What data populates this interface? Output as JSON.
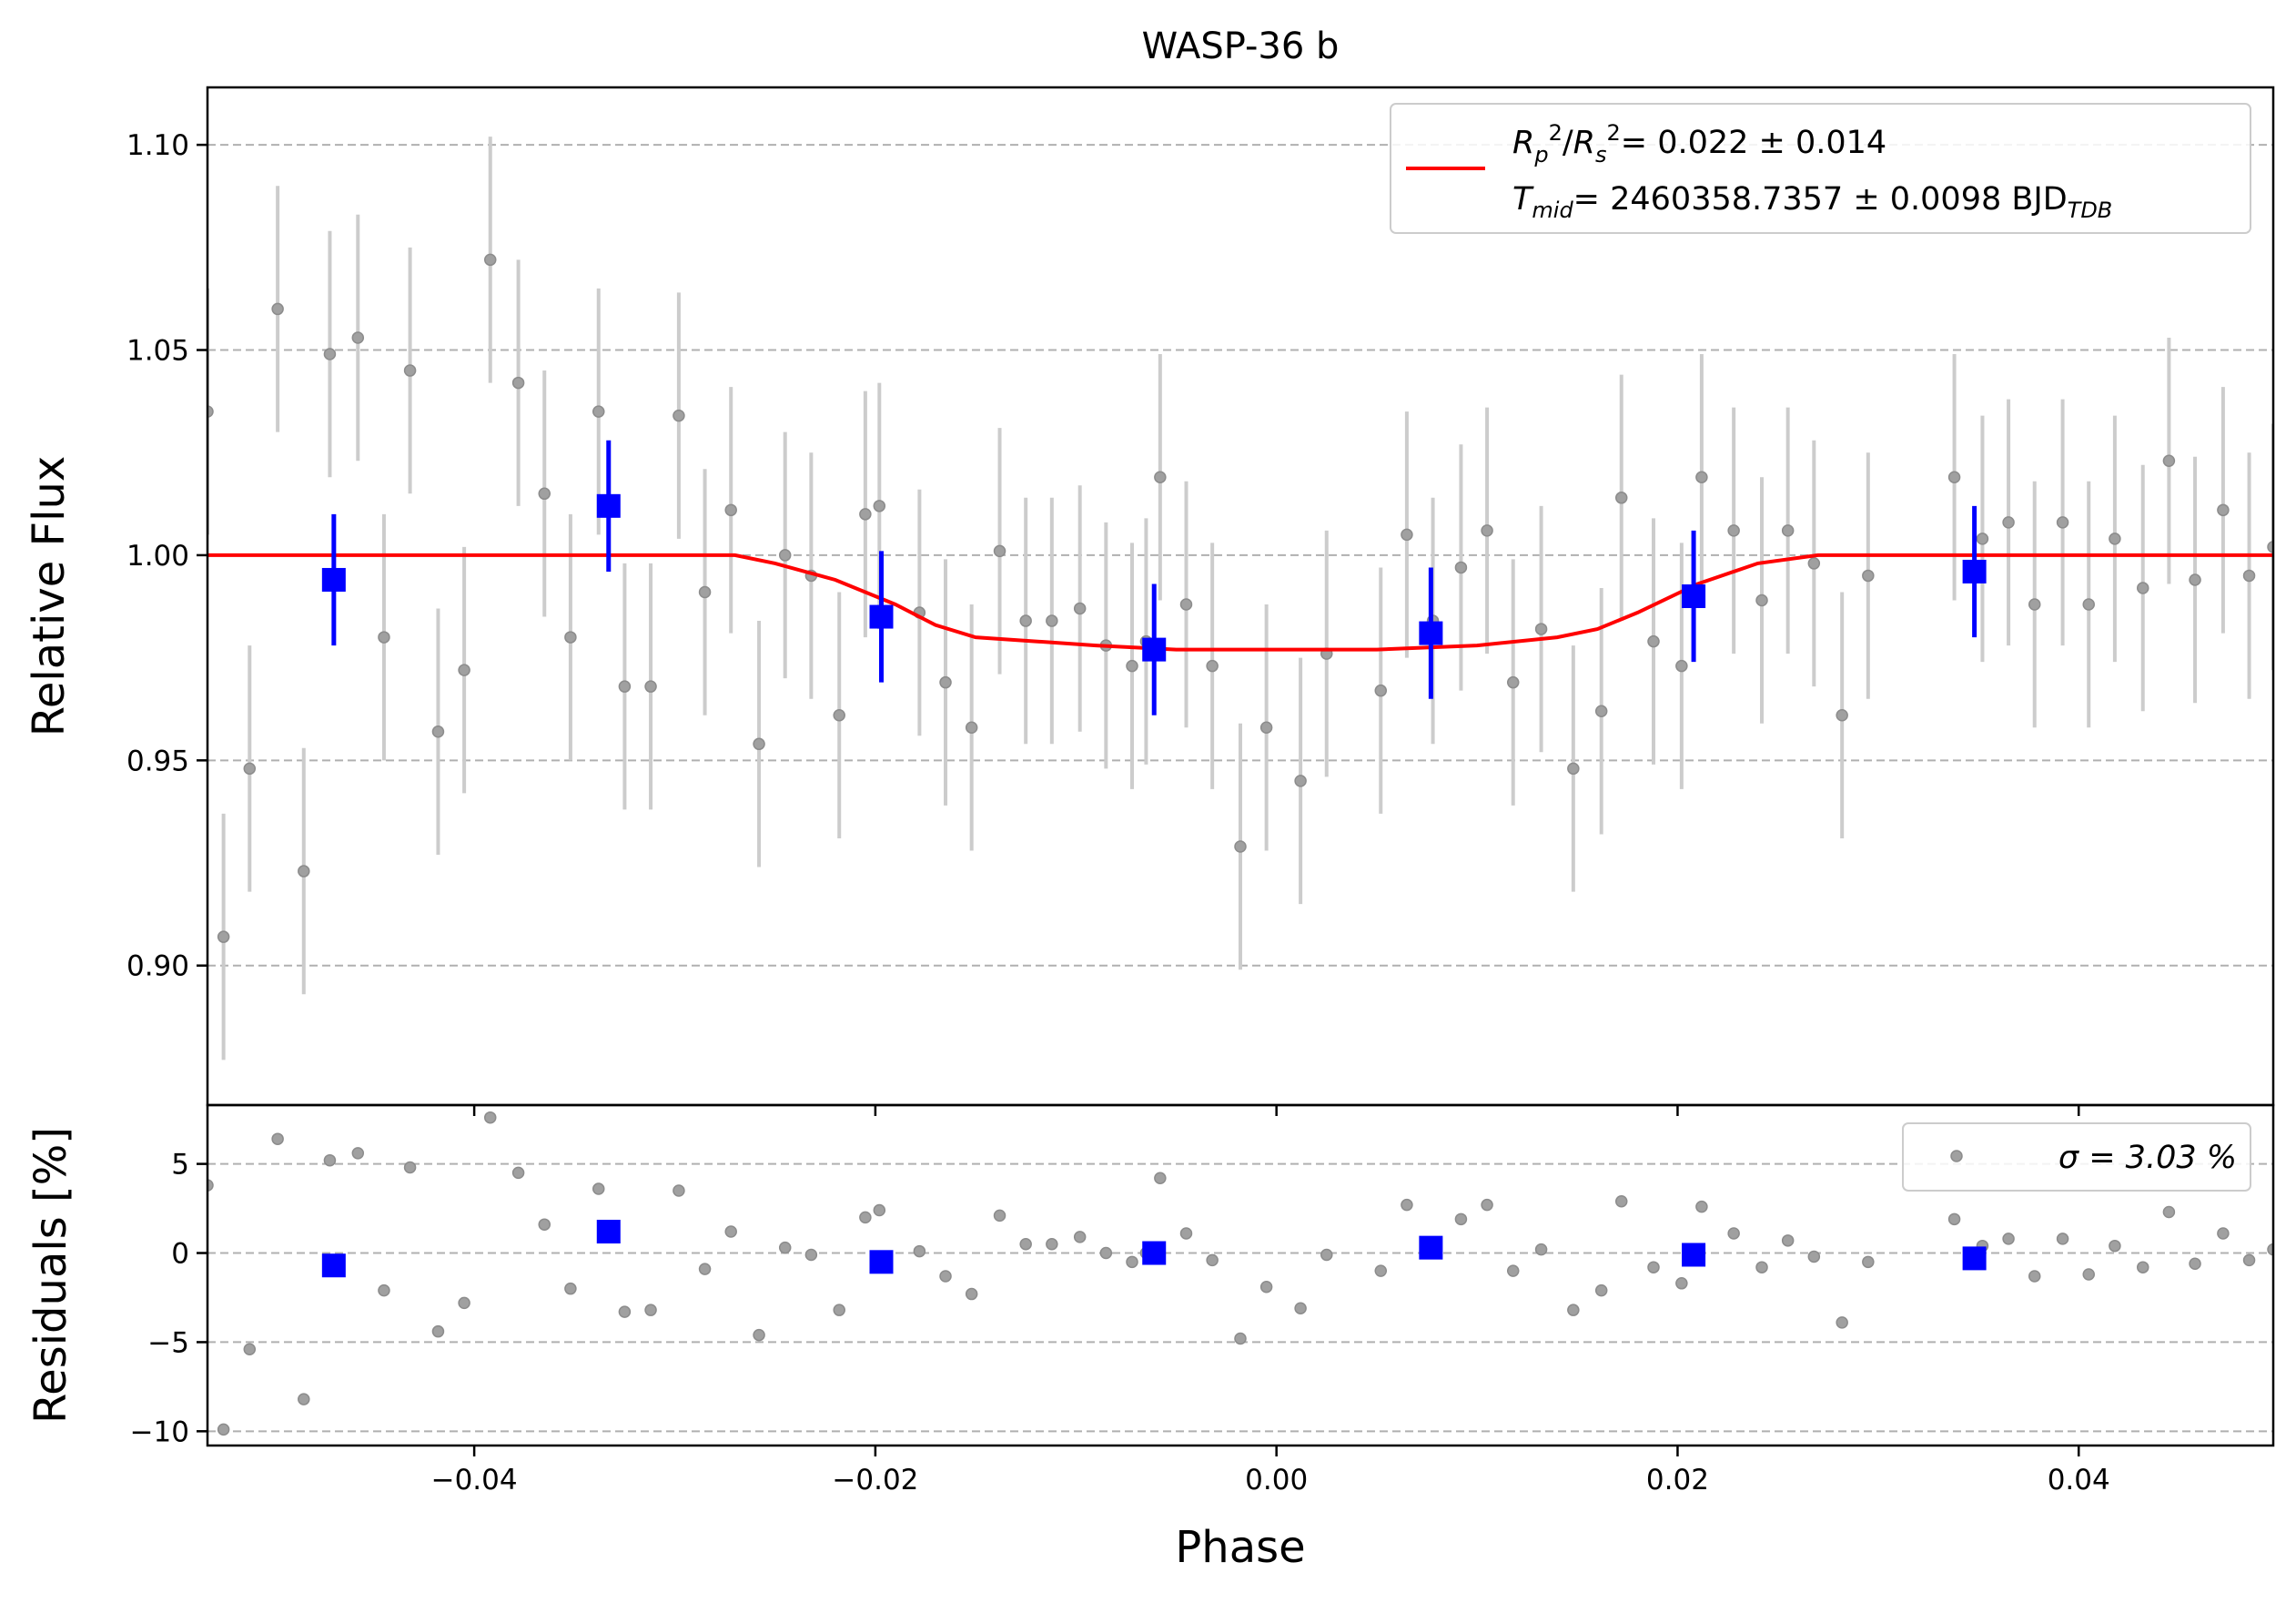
{
  "chart_data": [
    {
      "type": "scatter",
      "panel": "light-curve",
      "title": "WASP-36 b",
      "xlabel": "",
      "ylabel": "Relative Flux",
      "xlim": [
        -0.0533,
        0.0497
      ],
      "ylim": [
        0.866,
        1.114
      ],
      "yticks": [
        0.9,
        0.95,
        1.0,
        1.05,
        1.1
      ],
      "ytick_labels": [
        "0.90",
        "0.95",
        "1.00",
        "1.05",
        "1.10"
      ],
      "xticks": [
        -0.04,
        -0.02,
        0.0,
        0.02,
        0.04
      ],
      "grid": "horizontal dashed",
      "legend_position": "top-right",
      "legend": {
        "line1": {
          "label": "R_p^2/R_s^2",
          "value": "= 0.022 ± 0.014"
        },
        "line2": {
          "label": "T_mid",
          "value": "= 2460358.7357 ± 0.0098 BJD",
          "unit_sub": "TDB"
        }
      },
      "colors": {
        "raw": "#8c8c8c",
        "errorbar": "#cccccc",
        "binned": "#0000ff",
        "model": "#ff0000",
        "grid": "#b0b0b0"
      },
      "series": [
        {
          "kind": "raw",
          "yerr": 0.03,
          "points": [
            [
              -0.0533,
              1.035
            ],
            [
              -0.0525,
              0.907
            ],
            [
              -0.0512,
              0.948
            ],
            [
              -0.0498,
              1.06
            ],
            [
              -0.0485,
              0.923
            ],
            [
              -0.0472,
              1.049
            ],
            [
              -0.0458,
              1.053
            ],
            [
              -0.0445,
              0.98
            ],
            [
              -0.0432,
              1.045
            ],
            [
              -0.0418,
              0.957
            ],
            [
              -0.0405,
              0.972
            ],
            [
              -0.0392,
              1.072
            ],
            [
              -0.0378,
              1.042
            ],
            [
              -0.0365,
              1.015
            ],
            [
              -0.0352,
              0.98
            ],
            [
              -0.0338,
              1.035
            ],
            [
              -0.0325,
              0.968
            ],
            [
              -0.0312,
              0.968
            ],
            [
              -0.0298,
              1.034
            ],
            [
              -0.0285,
              0.991
            ],
            [
              -0.0272,
              1.011
            ],
            [
              -0.0258,
              0.954
            ],
            [
              -0.0245,
              1.0
            ],
            [
              -0.0232,
              0.995
            ],
            [
              -0.0218,
              0.961
            ],
            [
              -0.0205,
              1.01
            ],
            [
              -0.0198,
              1.012
            ],
            [
              -0.0178,
              0.986
            ],
            [
              -0.0165,
              0.969
            ],
            [
              -0.0152,
              0.958
            ],
            [
              -0.0138,
              1.001
            ],
            [
              -0.0125,
              0.984
            ],
            [
              -0.0112,
              0.984
            ],
            [
              -0.0098,
              0.987
            ],
            [
              -0.0085,
              0.978
            ],
            [
              -0.0072,
              0.973
            ],
            [
              -0.0065,
              0.979
            ],
            [
              -0.0058,
              1.019
            ],
            [
              -0.0045,
              0.988
            ],
            [
              -0.0032,
              0.973
            ],
            [
              -0.0018,
              0.929
            ],
            [
              -0.0005,
              0.958
            ],
            [
              0.0012,
              0.945
            ],
            [
              0.0025,
              0.976
            ],
            [
              0.0052,
              0.967
            ],
            [
              0.0065,
              1.005
            ],
            [
              0.0078,
              0.984
            ],
            [
              0.0092,
              0.997
            ],
            [
              0.0105,
              1.006
            ],
            [
              0.0118,
              0.969
            ],
            [
              0.0132,
              0.982
            ],
            [
              0.0148,
              0.948
            ],
            [
              0.0162,
              0.962
            ],
            [
              0.0172,
              1.014
            ],
            [
              0.0188,
              0.979
            ],
            [
              0.0202,
              0.973
            ],
            [
              0.0212,
              1.019
            ],
            [
              0.0228,
              1.006
            ],
            [
              0.0242,
              0.989
            ],
            [
              0.0255,
              1.006
            ],
            [
              0.0268,
              0.998
            ],
            [
              0.0282,
              0.961
            ],
            [
              0.0295,
              0.995
            ],
            [
              0.0338,
              1.019
            ],
            [
              0.0352,
              1.004
            ],
            [
              0.0365,
              1.008
            ],
            [
              0.0378,
              0.988
            ],
            [
              0.0392,
              1.008
            ],
            [
              0.0405,
              0.988
            ],
            [
              0.0418,
              1.004
            ],
            [
              0.0432,
              0.992
            ],
            [
              0.0445,
              1.023
            ],
            [
              0.0458,
              0.994
            ],
            [
              0.0472,
              1.011
            ],
            [
              0.0485,
              0.995
            ],
            [
              0.0497,
              1.002
            ]
          ]
        },
        {
          "kind": "binned",
          "yerr": 0.016,
          "points": [
            [
              -0.047,
              0.994
            ],
            [
              -0.0333,
              1.012
            ],
            [
              -0.0197,
              0.985
            ],
            [
              -0.0061,
              0.977
            ],
            [
              0.0077,
              0.981
            ],
            [
              0.0208,
              0.99
            ],
            [
              0.0348,
              0.996
            ]
          ]
        },
        {
          "kind": "model",
          "points": [
            [
              -0.0533,
              1.0
            ],
            [
              -0.027,
              1.0
            ],
            [
              -0.025,
              0.998
            ],
            [
              -0.022,
              0.994
            ],
            [
              -0.019,
              0.988
            ],
            [
              -0.017,
              0.983
            ],
            [
              -0.015,
              0.98
            ],
            [
              -0.012,
              0.979
            ],
            [
              -0.009,
              0.978
            ],
            [
              -0.005,
              0.977
            ],
            [
              0.0,
              0.977
            ],
            [
              0.005,
              0.977
            ],
            [
              0.01,
              0.978
            ],
            [
              0.014,
              0.98
            ],
            [
              0.016,
              0.982
            ],
            [
              0.018,
              0.986
            ],
            [
              0.021,
              0.993
            ],
            [
              0.024,
              0.998
            ],
            [
              0.027,
              1.0
            ],
            [
              0.0497,
              1.0
            ]
          ]
        }
      ]
    },
    {
      "type": "scatter",
      "panel": "residuals",
      "title": "",
      "xlabel": "Phase",
      "ylabel": "Residuals [%]",
      "xlim": [
        -0.0533,
        0.0497
      ],
      "ylim": [
        -10.8,
        8.3
      ],
      "yticks": [
        -10,
        -5,
        0,
        5
      ],
      "ytick_labels": [
        "−10",
        "−5",
        "0",
        "5"
      ],
      "xticks": [
        -0.04,
        -0.02,
        0.0,
        0.02,
        0.04
      ],
      "xtick_labels": [
        "−0.04",
        "−0.02",
        "0.00",
        "0.02",
        "0.04"
      ],
      "grid": "horizontal dashed",
      "legend_position": "top-right",
      "legend": {
        "label": "σ = 3.03 %"
      },
      "series": [
        {
          "kind": "raw",
          "points": [
            [
              -0.0533,
              3.8
            ],
            [
              -0.0525,
              -9.9
            ],
            [
              -0.0512,
              -5.4
            ],
            [
              -0.0498,
              6.4
            ],
            [
              -0.0485,
              -8.2
            ],
            [
              -0.0472,
              5.2
            ],
            [
              -0.0458,
              5.6
            ],
            [
              -0.0445,
              -2.1
            ],
            [
              -0.0432,
              4.8
            ],
            [
              -0.0418,
              -4.4
            ],
            [
              -0.0405,
              -2.8
            ],
            [
              -0.0392,
              7.6
            ],
            [
              -0.0378,
              4.5
            ],
            [
              -0.0365,
              1.6
            ],
            [
              -0.0352,
              -2.0
            ],
            [
              -0.0338,
              3.6
            ],
            [
              -0.0325,
              -3.3
            ],
            [
              -0.0312,
              -3.2
            ],
            [
              -0.0298,
              3.5
            ],
            [
              -0.0285,
              -0.9
            ],
            [
              -0.0272,
              1.2
            ],
            [
              -0.0258,
              -4.6
            ],
            [
              -0.0245,
              0.3
            ],
            [
              -0.0232,
              -0.1
            ],
            [
              -0.0218,
              -3.2
            ],
            [
              -0.0205,
              2.0
            ],
            [
              -0.0198,
              2.4
            ],
            [
              -0.0178,
              0.1
            ],
            [
              -0.0165,
              -1.3
            ],
            [
              -0.0152,
              -2.3
            ],
            [
              -0.0138,
              2.1
            ],
            [
              -0.0125,
              0.5
            ],
            [
              -0.0112,
              0.5
            ],
            [
              -0.0098,
              0.9
            ],
            [
              -0.0085,
              0.0
            ],
            [
              -0.0072,
              -0.5
            ],
            [
              -0.0065,
              0.0
            ],
            [
              -0.0058,
              4.2
            ],
            [
              -0.0045,
              1.1
            ],
            [
              -0.0032,
              -0.4
            ],
            [
              -0.0018,
              -4.8
            ],
            [
              -0.0005,
              -1.9
            ],
            [
              0.0012,
              -3.1
            ],
            [
              0.0025,
              -0.1
            ],
            [
              0.0052,
              -1.0
            ],
            [
              0.0065,
              2.7
            ],
            [
              0.0078,
              0.6
            ],
            [
              0.0092,
              1.9
            ],
            [
              0.0105,
              2.7
            ],
            [
              0.0118,
              -1.0
            ],
            [
              0.0132,
              0.2
            ],
            [
              0.0148,
              -3.2
            ],
            [
              0.0162,
              -2.1
            ],
            [
              0.0172,
              2.9
            ],
            [
              0.0188,
              -0.8
            ],
            [
              0.0202,
              -1.7
            ],
            [
              0.0212,
              2.6
            ],
            [
              0.0228,
              1.1
            ],
            [
              0.0242,
              -0.8
            ],
            [
              0.0255,
              0.7
            ],
            [
              0.0268,
              -0.2
            ],
            [
              0.0282,
              -3.9
            ],
            [
              0.0295,
              -0.5
            ],
            [
              0.0338,
              1.9
            ],
            [
              0.0352,
              0.4
            ],
            [
              0.0365,
              0.8
            ],
            [
              0.0378,
              -1.3
            ],
            [
              0.0392,
              0.8
            ],
            [
              0.0405,
              -1.2
            ],
            [
              0.0418,
              0.4
            ],
            [
              0.0432,
              -0.8
            ],
            [
              0.0445,
              2.3
            ],
            [
              0.0458,
              -0.6
            ],
            [
              0.0472,
              1.1
            ],
            [
              0.0485,
              -0.4
            ],
            [
              0.0497,
              0.2
            ]
          ]
        },
        {
          "kind": "binned",
          "points": [
            [
              -0.047,
              -0.7
            ],
            [
              -0.0333,
              1.2
            ],
            [
              -0.0197,
              -0.5
            ],
            [
              -0.0061,
              0.0
            ],
            [
              0.0077,
              0.3
            ],
            [
              0.0208,
              -0.1
            ],
            [
              0.0348,
              -0.3
            ]
          ]
        }
      ]
    }
  ]
}
